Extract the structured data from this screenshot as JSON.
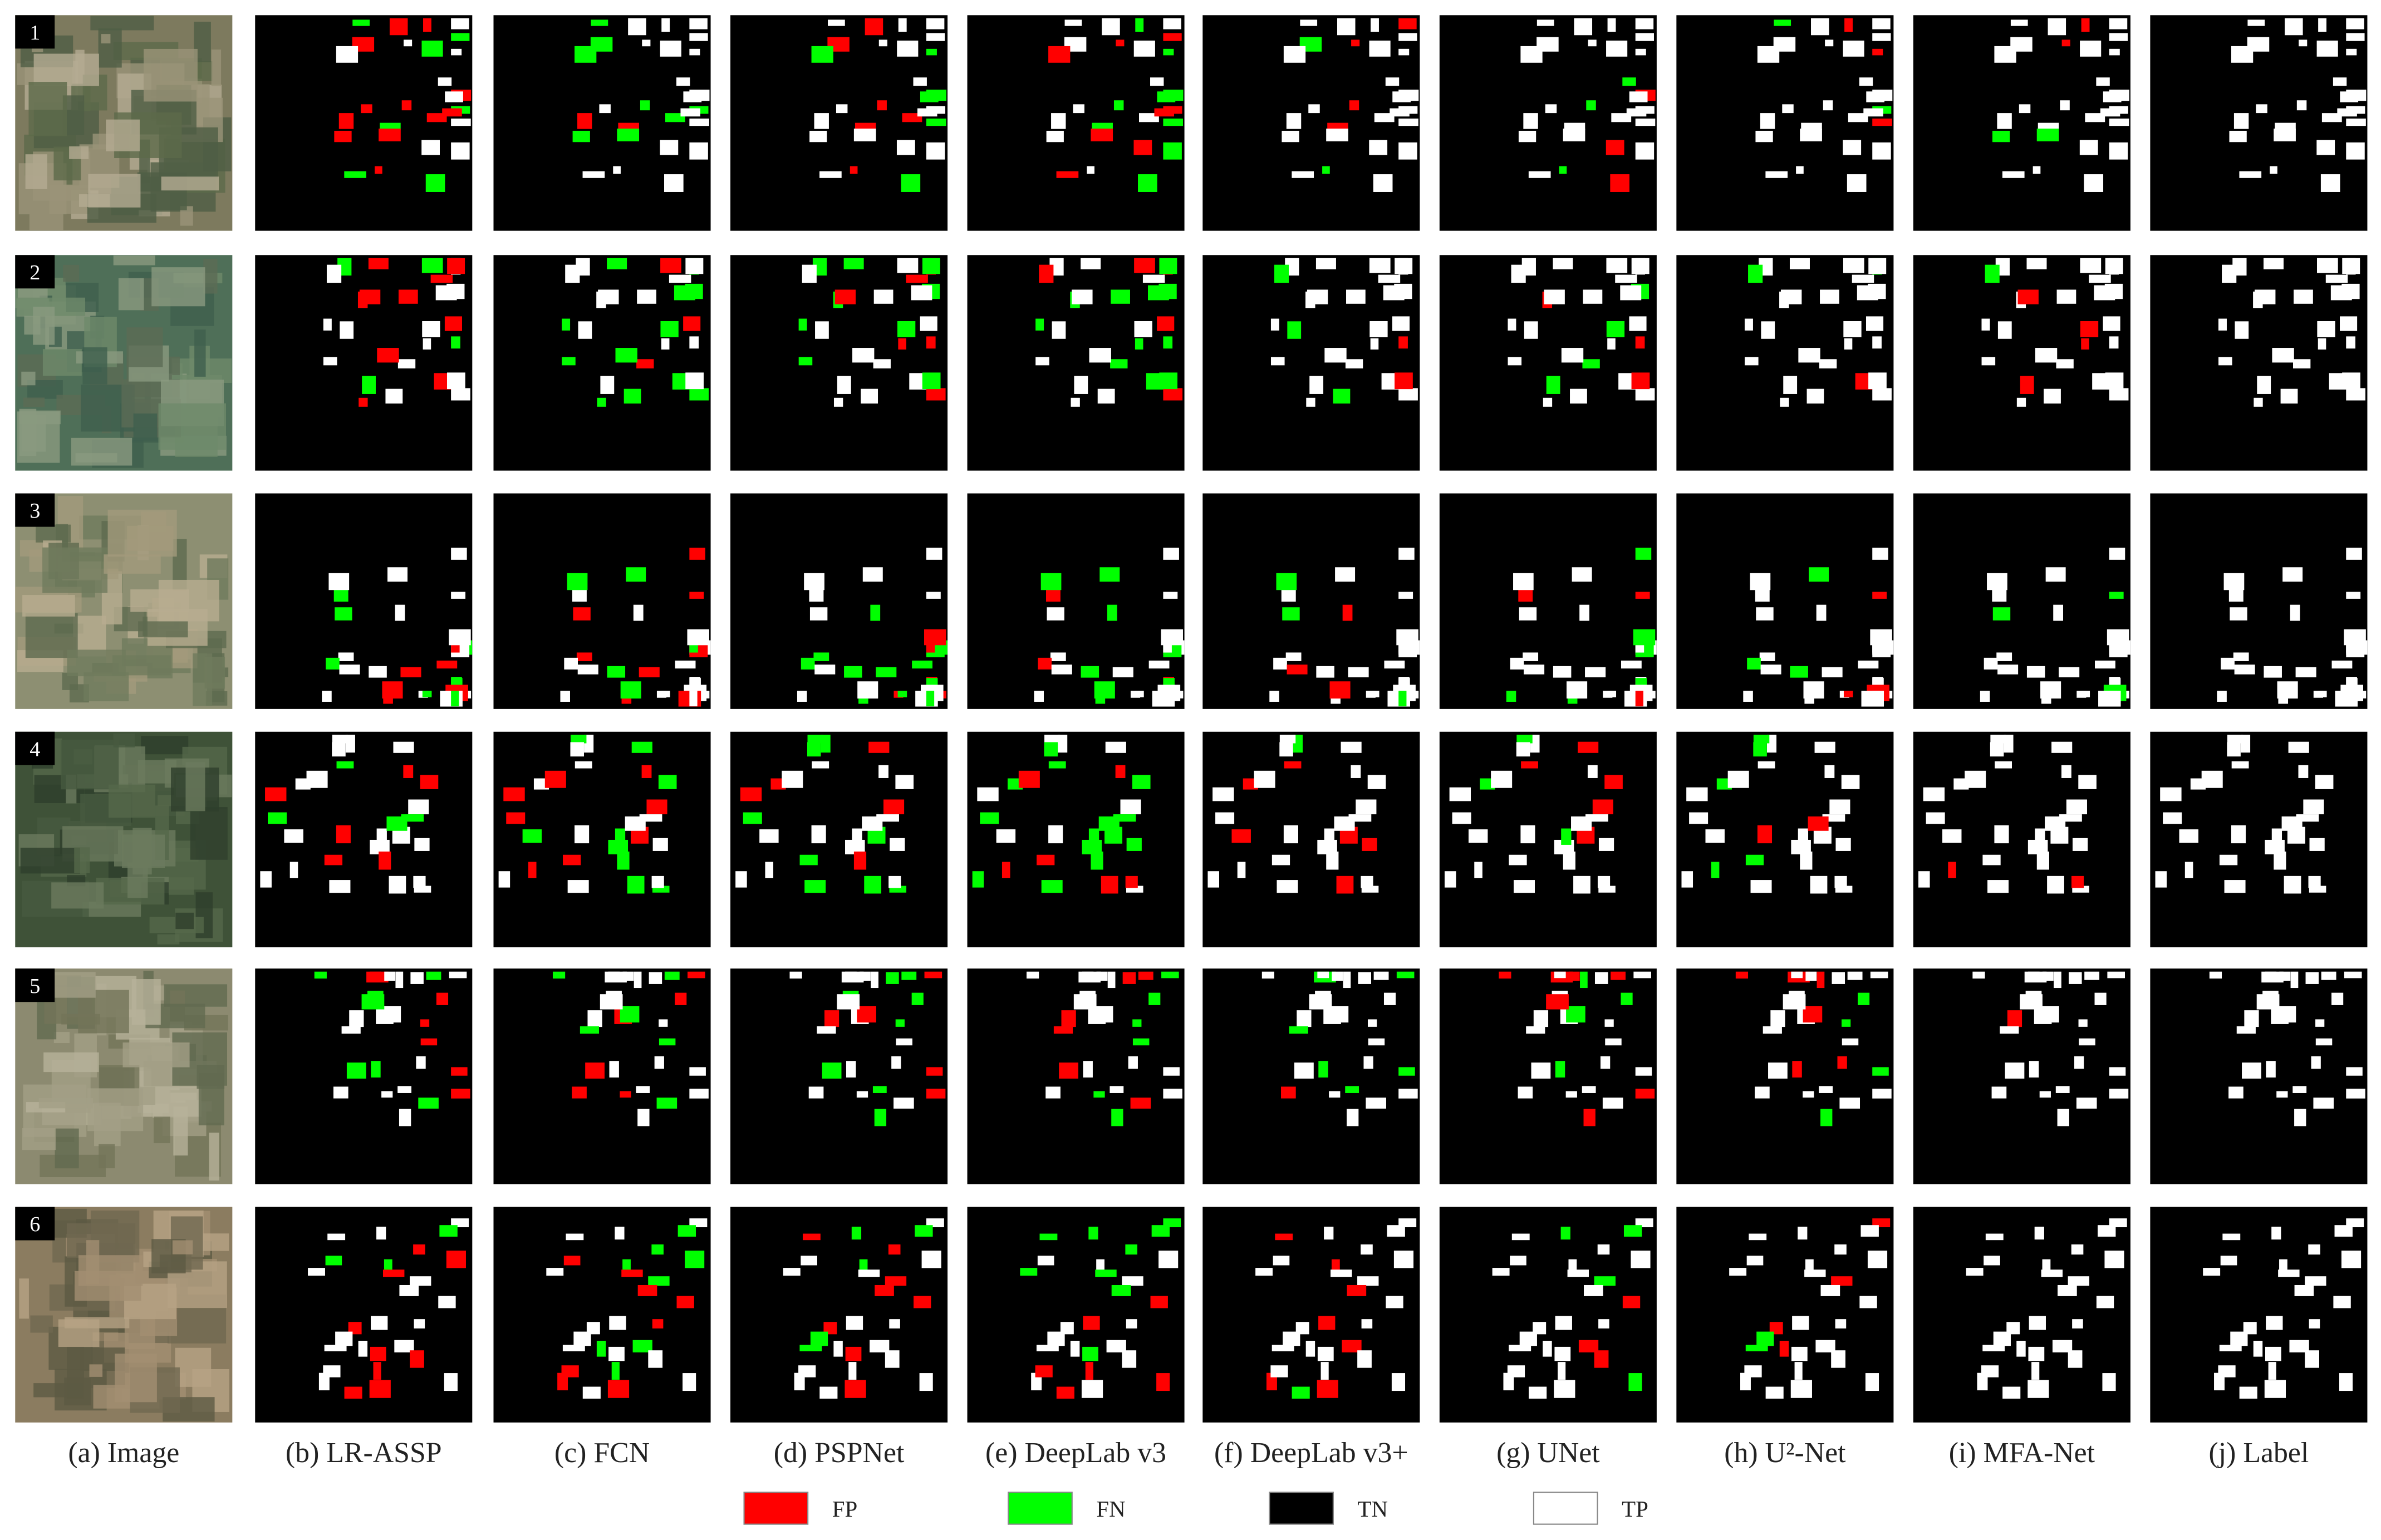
{
  "figure": {
    "rows": [
      "1",
      "2",
      "3",
      "4",
      "5",
      "6"
    ],
    "columns": [
      "(a) Image",
      "(b) LR-ASSP",
      "(c) FCN",
      "(d) PSPNet",
      "(e) DeepLab v3",
      "(f) DeepLab v3+",
      "(g) UNet",
      "(h) U²-Net",
      "(i) MFA-Net",
      "(j) Label"
    ],
    "legend": [
      {
        "label": "FP",
        "color": "#ff0000"
      },
      {
        "label": "FN",
        "color": "#00ff00"
      },
      {
        "label": "TN",
        "color": "#000000"
      },
      {
        "label": "TP",
        "color": "#ffffff"
      }
    ]
  }
}
